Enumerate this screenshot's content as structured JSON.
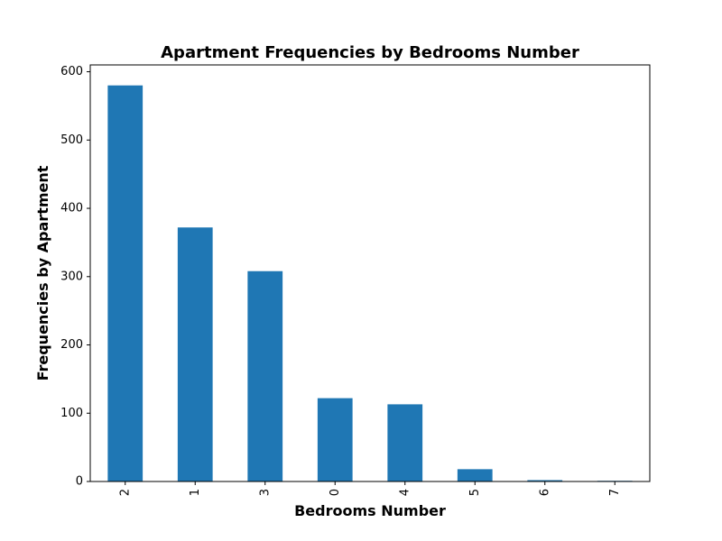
{
  "chart_data": {
    "type": "bar",
    "title": "Apartment Frequencies by Bedrooms Number",
    "xlabel": "Bedrooms Number",
    "ylabel": "Frequencies by Apartment",
    "categories": [
      "2",
      "1",
      "3",
      "0",
      "4",
      "5",
      "6",
      "7"
    ],
    "values": [
      580,
      372,
      308,
      122,
      113,
      18,
      2,
      1
    ],
    "ylim": [
      0,
      610
    ],
    "yticks": [
      "0",
      "100",
      "200",
      "300",
      "400",
      "500",
      "600"
    ],
    "grid": false,
    "bar_color": "#1f77b4",
    "x_tick_rotation": "vertical"
  }
}
